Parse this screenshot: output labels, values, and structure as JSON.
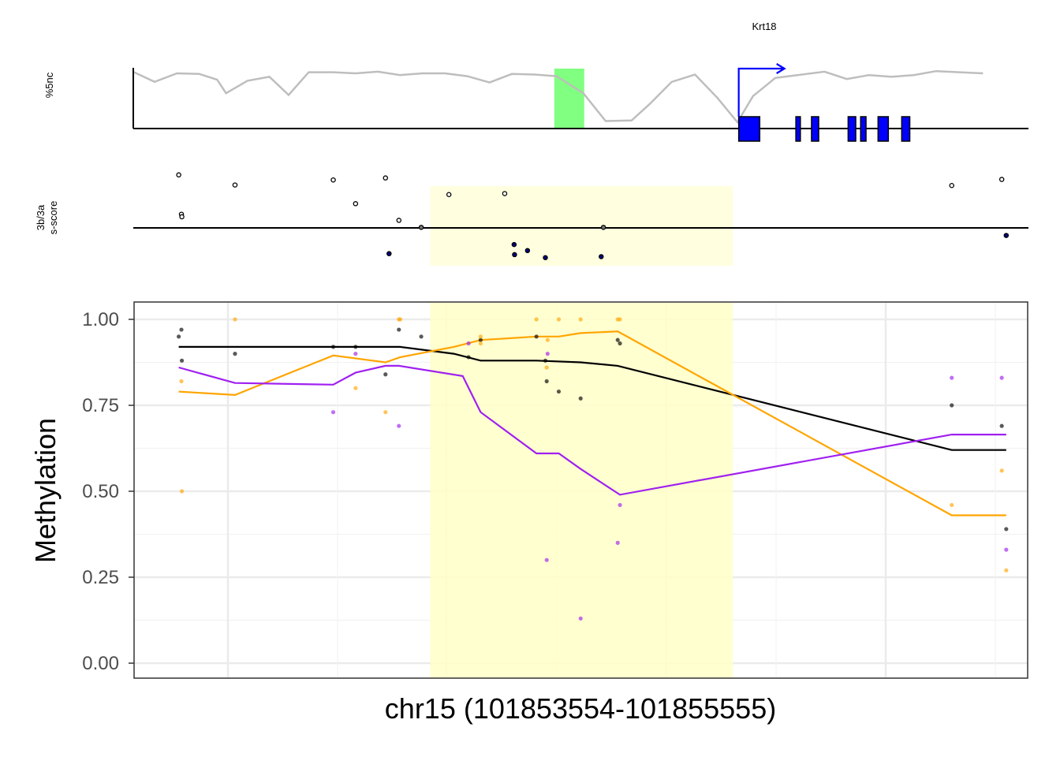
{
  "gene_track": {
    "gene_label": "Krt18",
    "ylabel": "%5nc",
    "colors": {
      "profile": "#bebebe",
      "highlight": "#80ff80",
      "exon": "#0000ff",
      "arrow": "#0000ff"
    },
    "profile": [
      [
        101853554,
        0.95
      ],
      [
        101853600,
        0.78
      ],
      [
        101853650,
        0.93
      ],
      [
        101853700,
        0.92
      ],
      [
        101853740,
        0.82
      ],
      [
        101853760,
        0.58
      ],
      [
        101853808,
        0.8
      ],
      [
        101853857,
        0.87
      ],
      [
        101853900,
        0.55
      ],
      [
        101853945,
        0.95
      ],
      [
        101854000,
        0.95
      ],
      [
        101854050,
        0.93
      ],
      [
        101854100,
        0.96
      ],
      [
        101854150,
        0.9
      ],
      [
        101854200,
        0.93
      ],
      [
        101854250,
        0.93
      ],
      [
        101854300,
        0.88
      ],
      [
        101854350,
        0.77
      ],
      [
        101854400,
        0.92
      ],
      [
        101854450,
        0.91
      ],
      [
        101854500,
        0.88
      ],
      [
        101854560,
        0.58
      ],
      [
        101854610,
        0.09
      ],
      [
        101854668,
        0.1
      ],
      [
        101854710,
        0.4
      ],
      [
        101854758,
        0.78
      ],
      [
        101854810,
        0.91
      ],
      [
        101854860,
        0.5
      ],
      [
        101854905,
        0.07
      ],
      [
        101854940,
        0.53
      ],
      [
        101854990,
        0.85
      ],
      [
        101855040,
        0.9
      ],
      [
        101855100,
        0.96
      ],
      [
        101855150,
        0.83
      ],
      [
        101855200,
        0.9
      ],
      [
        101855250,
        0.87
      ],
      [
        101855300,
        0.9
      ],
      [
        101855350,
        0.97
      ],
      [
        101855455,
        0.93
      ]
    ],
    "highlight_range": [
      101854495,
      101854562
    ],
    "tss": 101854908,
    "exons": [
      [
        101854908,
        101854955
      ],
      [
        101855036,
        101855046
      ],
      [
        101855071,
        101855087
      ],
      [
        101855153,
        101855170
      ],
      [
        101855181,
        101855193
      ],
      [
        101855220,
        101855243
      ],
      [
        101855273,
        101855291
      ]
    ]
  },
  "sscore_track": {
    "ylabel_line1": "3b/3a",
    "ylabel_line2": "s-score",
    "colors": {
      "shade": "#ffffe0",
      "positive": "#ffffff",
      "negative": "#000080"
    },
    "shade_range": [
      101854217,
      101854895
    ],
    "points": [
      [
        101853654,
        1.05
      ],
      [
        101853660,
        0.27
      ],
      [
        101853661,
        0.22
      ],
      [
        101853780,
        0.85
      ],
      [
        101854000,
        0.95
      ],
      [
        101854050,
        0.48
      ],
      [
        101854117,
        0.99
      ],
      [
        101854147,
        0.15
      ],
      [
        101854197,
        0.01
      ],
      [
        101854125,
        -0.51
      ],
      [
        101854259,
        0.66
      ],
      [
        101854384,
        0.68
      ],
      [
        101854405,
        -0.33
      ],
      [
        101854406,
        -0.53
      ],
      [
        101854435,
        -0.45
      ],
      [
        101854475,
        -0.59
      ],
      [
        101854605,
        0.01
      ],
      [
        101854600,
        -0.57
      ],
      [
        101855385,
        0.84
      ],
      [
        101855497,
        0.96
      ],
      [
        101855507,
        -0.15
      ]
    ]
  },
  "chart_data": {
    "type": "scatter",
    "xlabel": "chr15 (101853554-101855555)",
    "ylabel": "Methylation",
    "xlim": [
      101853554,
      101855555
    ],
    "ylim": [
      0,
      1
    ],
    "yticks": [
      "0.00",
      "0.25",
      "0.50",
      "0.75",
      "1.00"
    ],
    "shade_range": [
      101854217,
      101854895
    ],
    "colors": {
      "shade": "#ffffc8",
      "black": "#000000",
      "orange": "#ffa500",
      "purple": "#a020f0"
    },
    "series": [
      {
        "color": "#000000",
        "points": [
          [
            101853654,
            0.95
          ],
          [
            101853660,
            0.97
          ],
          [
            101853661,
            0.88
          ],
          [
            101853780,
            0.9
          ],
          [
            101854000,
            0.92
          ],
          [
            101854050,
            0.92
          ],
          [
            101854117,
            0.84
          ],
          [
            101854147,
            0.97
          ],
          [
            101854197,
            0.95
          ],
          [
            101854303,
            0.89
          ],
          [
            101854330,
            0.94
          ],
          [
            101854455,
            0.95
          ],
          [
            101854475,
            0.88
          ],
          [
            101854478,
            0.82
          ],
          [
            101854505,
            0.79
          ],
          [
            101854554,
            0.77
          ],
          [
            101854637,
            0.94
          ],
          [
            101854642,
            0.93
          ],
          [
            101855385,
            0.75
          ],
          [
            101855497,
            0.69
          ],
          [
            101855507,
            0.39
          ]
        ],
        "line": [
          [
            101853654,
            0.92
          ],
          [
            101853780,
            0.92
          ],
          [
            101854000,
            0.92
          ],
          [
            101854117,
            0.92
          ],
          [
            101854150,
            0.92
          ],
          [
            101854270,
            0.9
          ],
          [
            101854330,
            0.88
          ],
          [
            101854455,
            0.88
          ],
          [
            101854554,
            0.875
          ],
          [
            101854637,
            0.865
          ],
          [
            101855385,
            0.62
          ],
          [
            101855507,
            0.62
          ]
        ]
      },
      {
        "color": "#ffa500",
        "points": [
          [
            101853660,
            0.82
          ],
          [
            101853661,
            0.5
          ],
          [
            101853780,
            1.0
          ],
          [
            101854050,
            0.8
          ],
          [
            101854117,
            0.73
          ],
          [
            101854147,
            1.0
          ],
          [
            101854150,
            1.0
          ],
          [
            101854330,
            0.93
          ],
          [
            101854330,
            0.95
          ],
          [
            101854455,
            1.0
          ],
          [
            101854478,
            0.86
          ],
          [
            101854480,
            0.94
          ],
          [
            101854505,
            1.0
          ],
          [
            101854554,
            1.0
          ],
          [
            101854637,
            1.0
          ],
          [
            101854642,
            1.0
          ],
          [
            101855385,
            0.46
          ],
          [
            101855497,
            0.56
          ],
          [
            101855507,
            0.27
          ]
        ],
        "line": [
          [
            101853654,
            0.79
          ],
          [
            101853780,
            0.78
          ],
          [
            101854000,
            0.895
          ],
          [
            101854117,
            0.875
          ],
          [
            101854150,
            0.89
          ],
          [
            101854270,
            0.92
          ],
          [
            101854330,
            0.94
          ],
          [
            101854455,
            0.95
          ],
          [
            101854505,
            0.95
          ],
          [
            101854554,
            0.96
          ],
          [
            101854637,
            0.965
          ],
          [
            101855385,
            0.43
          ],
          [
            101855507,
            0.43
          ]
        ]
      },
      {
        "color": "#a020f0",
        "points": [
          [
            101854000,
            0.73
          ],
          [
            101854050,
            0.9
          ],
          [
            101854147,
            0.69
          ],
          [
            101854303,
            0.93
          ],
          [
            101854478,
            0.3
          ],
          [
            101854480,
            0.9
          ],
          [
            101854554,
            0.13
          ],
          [
            101854642,
            0.46
          ],
          [
            101854637,
            0.35
          ],
          [
            101855385,
            0.83
          ],
          [
            101855497,
            0.83
          ],
          [
            101855507,
            0.33
          ]
        ],
        "line": [
          [
            101853654,
            0.86
          ],
          [
            101853780,
            0.815
          ],
          [
            101854000,
            0.81
          ],
          [
            101854050,
            0.845
          ],
          [
            101854117,
            0.865
          ],
          [
            101854147,
            0.865
          ],
          [
            101854290,
            0.835
          ],
          [
            101854330,
            0.73
          ],
          [
            101854455,
            0.61
          ],
          [
            101854505,
            0.61
          ],
          [
            101854554,
            0.565
          ],
          [
            101854642,
            0.49
          ],
          [
            101855385,
            0.665
          ],
          [
            101855507,
            0.665
          ]
        ]
      }
    ]
  }
}
